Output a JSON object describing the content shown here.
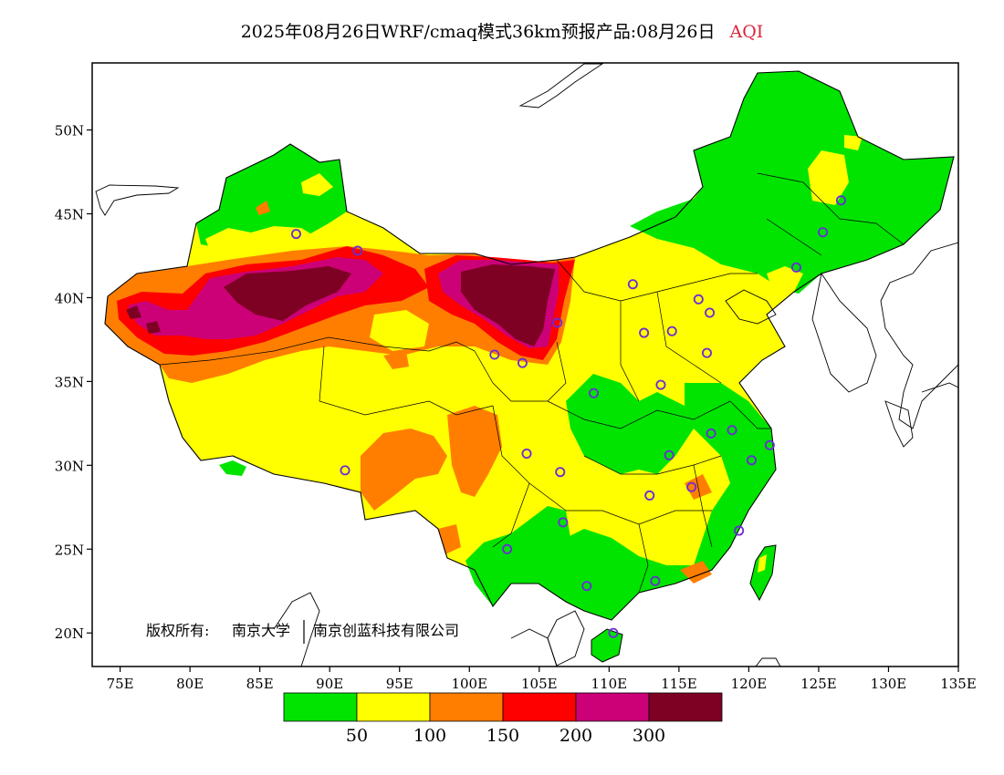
{
  "title": {
    "main": "2025年08月26日WRF/cmaq模式36km预报产品:08月26日",
    "variable": "AQI"
  },
  "axes": {
    "lat_labels": [
      "50N",
      "45N",
      "40N",
      "35N",
      "30N",
      "25N",
      "20N"
    ],
    "lon_labels": [
      "75E",
      "80E",
      "85E",
      "90E",
      "95E",
      "100E",
      "105E",
      "110E",
      "115E",
      "120E",
      "125E",
      "130E",
      "135E"
    ],
    "lon_range": [
      73,
      135
    ],
    "lat_range": [
      18,
      54
    ]
  },
  "copyright": {
    "label": "版权所有:",
    "org1": "南京大学",
    "org2": "南京创蓝科技有限公司"
  },
  "legend": {
    "colors": [
      "#00e400",
      "#ffff00",
      "#ff7e00",
      "#ff0000",
      "#cc0077",
      "#7e0023"
    ],
    "labels": [
      "50",
      "100",
      "150",
      "200",
      "300"
    ],
    "color_names": [
      "good",
      "moderate",
      "unhealthy-sensitive",
      "unhealthy",
      "very-unhealthy",
      "hazardous"
    ]
  },
  "stations_lonlat": [
    [
      87.6,
      43.8
    ],
    [
      91.1,
      29.7
    ],
    [
      101.8,
      36.6
    ],
    [
      103.8,
      36.1
    ],
    [
      106.3,
      38.5
    ],
    [
      111.7,
      40.8
    ],
    [
      112.5,
      37.9
    ],
    [
      114.5,
      38.0
    ],
    [
      116.4,
      39.9
    ],
    [
      117.2,
      39.1
    ],
    [
      117.0,
      36.7
    ],
    [
      113.7,
      34.8
    ],
    [
      108.9,
      34.3
    ],
    [
      104.1,
      30.7
    ],
    [
      106.5,
      29.6
    ],
    [
      106.7,
      26.6
    ],
    [
      102.7,
      25.0
    ],
    [
      108.4,
      22.8
    ],
    [
      110.3,
      20.0
    ],
    [
      113.3,
      23.1
    ],
    [
      114.3,
      30.6
    ],
    [
      112.9,
      28.2
    ],
    [
      115.9,
      28.7
    ],
    [
      117.3,
      31.9
    ],
    [
      118.8,
      32.1
    ],
    [
      120.2,
      30.3
    ],
    [
      121.5,
      31.2
    ],
    [
      119.3,
      26.1
    ],
    [
      123.4,
      41.8
    ],
    [
      125.3,
      43.9
    ],
    [
      126.6,
      45.8
    ],
    [
      92.0,
      42.8
    ]
  ]
}
